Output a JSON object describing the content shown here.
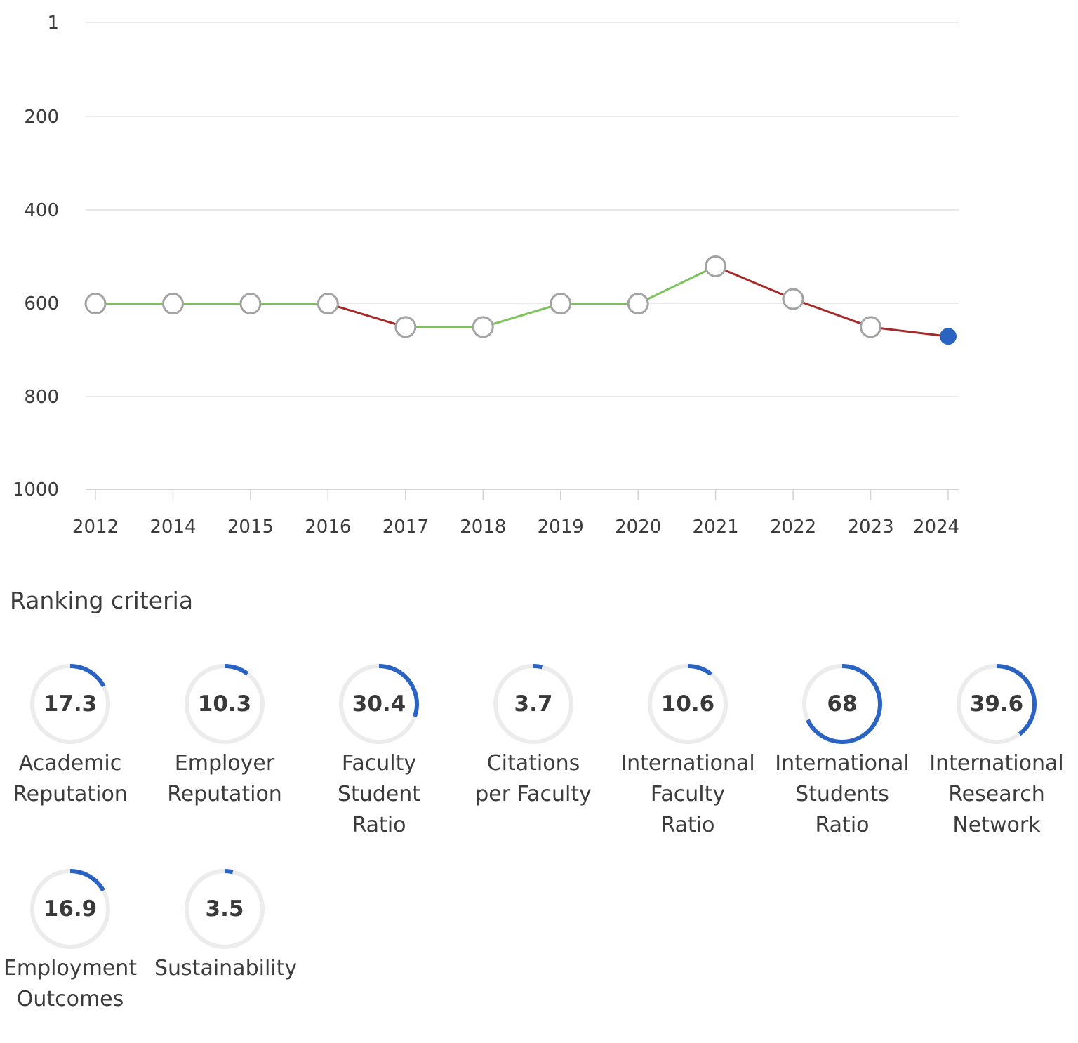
{
  "chart_data": {
    "type": "line",
    "x": [
      "2012",
      "2014",
      "2015",
      "2016",
      "2017",
      "2018",
      "2019",
      "2020",
      "2021",
      "2022",
      "2023",
      "2024"
    ],
    "values": [
      601,
      601,
      601,
      601,
      651,
      651,
      601,
      601,
      521,
      591,
      651,
      671
    ],
    "y_ticks": [
      "1",
      "200",
      "400",
      "600",
      "800",
      "1000"
    ],
    "ylim": [
      1,
      1000
    ],
    "y_inverted": true,
    "grid": "horizontal",
    "colors": {
      "worse": "#a52a2a",
      "better": "#7cc15a",
      "grid": "#e2e2e2",
      "axis": "#d4d4d4",
      "marker_fill": "#ffffff",
      "marker_stroke": "#a3a3a3",
      "current_marker": "#2a63c1"
    }
  },
  "criteria_section": {
    "title": "Ranking criteria",
    "max_score": 100,
    "colors": {
      "track": "#ececec",
      "progress": "#2a63c1"
    },
    "items": [
      {
        "value": "17.3",
        "score": 17.3,
        "label_lines": [
          "Academic",
          "Reputation"
        ]
      },
      {
        "value": "10.3",
        "score": 10.3,
        "label_lines": [
          "Employer",
          "Reputation"
        ]
      },
      {
        "value": "30.4",
        "score": 30.4,
        "label_lines": [
          "Faculty",
          "Student",
          "Ratio"
        ]
      },
      {
        "value": "3.7",
        "score": 3.7,
        "label_lines": [
          "Citations",
          "per Faculty"
        ]
      },
      {
        "value": "10.6",
        "score": 10.6,
        "label_lines": [
          "International",
          "Faculty",
          "Ratio"
        ]
      },
      {
        "value": "68",
        "score": 68,
        "label_lines": [
          "International",
          "Students",
          "Ratio"
        ]
      },
      {
        "value": "39.6",
        "score": 39.6,
        "label_lines": [
          "International",
          "Research",
          "Network"
        ]
      },
      {
        "value": "16.9",
        "score": 16.9,
        "label_lines": [
          "Employment",
          "Outcomes"
        ]
      },
      {
        "value": "3.5",
        "score": 3.5,
        "label_lines": [
          "Sustainability"
        ]
      }
    ]
  }
}
